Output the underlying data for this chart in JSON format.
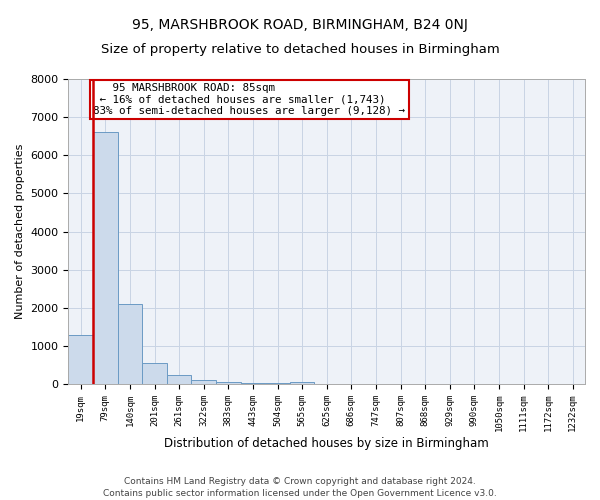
{
  "title": "95, MARSHBROOK ROAD, BIRMINGHAM, B24 0NJ",
  "subtitle": "Size of property relative to detached houses in Birmingham",
  "xlabel": "Distribution of detached houses by size in Birmingham",
  "ylabel": "Number of detached properties",
  "footnote1": "Contains HM Land Registry data © Crown copyright and database right 2024.",
  "footnote2": "Contains public sector information licensed under the Open Government Licence v3.0.",
  "bin_labels": [
    "19sqm",
    "79sqm",
    "140sqm",
    "201sqm",
    "261sqm",
    "322sqm",
    "383sqm",
    "443sqm",
    "504sqm",
    "565sqm",
    "625sqm",
    "686sqm",
    "747sqm",
    "807sqm",
    "868sqm",
    "929sqm",
    "990sqm",
    "1050sqm",
    "1111sqm",
    "1172sqm",
    "1232sqm"
  ],
  "bar_values": [
    1300,
    6600,
    2100,
    550,
    250,
    100,
    50,
    30,
    20,
    60,
    0,
    0,
    0,
    0,
    0,
    0,
    0,
    0,
    0,
    0,
    0
  ],
  "bar_color": "#ccdaeb",
  "bar_edge_color": "#6b9ac4",
  "property_line_color": "#cc0000",
  "annotation_line1": "   95 MARSHBROOK ROAD: 85sqm",
  "annotation_line2": " ← 16% of detached houses are smaller (1,743)",
  "annotation_line3": "83% of semi-detached houses are larger (9,128) →",
  "annotation_box_color": "#ffffff",
  "annotation_box_edge": "#cc0000",
  "ylim": [
    0,
    8000
  ],
  "yticks": [
    0,
    1000,
    2000,
    3000,
    4000,
    5000,
    6000,
    7000,
    8000
  ],
  "grid_color": "#c8d4e4",
  "background_color": "#eef2f8",
  "title_fontsize": 10,
  "subtitle_fontsize": 9.5,
  "title_fontweight": "normal"
}
